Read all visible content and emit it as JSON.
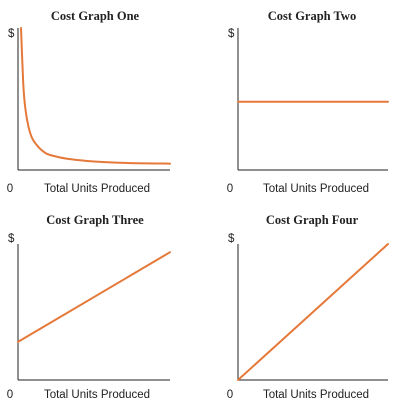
{
  "style": {
    "line_color": "#E5793A",
    "axis_color": "#222222"
  },
  "chart_data": [
    {
      "type": "line",
      "title": "Cost Graph One",
      "xlabel": "Total Units Produced",
      "ylabel": "$",
      "x_origin_label": "0",
      "xlim": [
        0,
        10
      ],
      "ylim": [
        0,
        10
      ],
      "series": [
        {
          "x": [
            0.2,
            0.35,
            0.5,
            0.8,
            1.2,
            1.8,
            2.5,
            3.5,
            5,
            7,
            10
          ],
          "y": [
            10.5,
            6.0,
            4.2,
            2.6,
            1.8,
            1.2,
            0.95,
            0.75,
            0.6,
            0.5,
            0.45
          ]
        }
      ]
    },
    {
      "type": "line",
      "title": "Cost Graph Two",
      "xlabel": "Total Units Produced",
      "ylabel": "$",
      "x_origin_label": "0",
      "xlim": [
        0,
        10
      ],
      "ylim": [
        0,
        10
      ],
      "series": [
        {
          "x": [
            0,
            10
          ],
          "y": [
            4.8,
            4.8
          ]
        }
      ]
    },
    {
      "type": "line",
      "title": "Cost Graph Three",
      "xlabel": "Total Units Produced",
      "ylabel": "$",
      "x_origin_label": "0",
      "xlim": [
        0,
        10
      ],
      "ylim": [
        0,
        10
      ],
      "series": [
        {
          "x": [
            0,
            10
          ],
          "y": [
            2.8,
            9.4
          ]
        }
      ]
    },
    {
      "type": "line",
      "title": "Cost Graph Four",
      "xlabel": "Total Units Produced",
      "ylabel": "$",
      "x_origin_label": "0",
      "xlim": [
        0,
        10
      ],
      "ylim": [
        0,
        10
      ],
      "series": [
        {
          "x": [
            0,
            10
          ],
          "y": [
            0,
            10
          ]
        }
      ]
    }
  ]
}
